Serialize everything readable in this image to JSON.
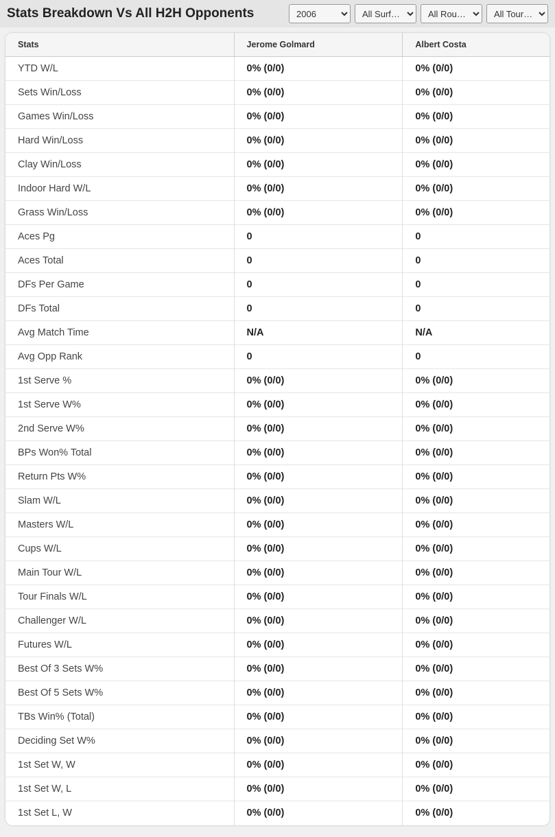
{
  "header": {
    "title": "Stats Breakdown Vs All H2H Opponents",
    "filters": {
      "year": "2006",
      "surface": "All Surf…",
      "round": "All Rou…",
      "tour": "All Tour…"
    }
  },
  "table": {
    "columns": {
      "stats": "Stats",
      "player1": "Jerome Golmard",
      "player2": "Albert Costa"
    },
    "rows": [
      {
        "label": "YTD W/L",
        "p1": "0% (0/0)",
        "p2": "0% (0/0)"
      },
      {
        "label": "Sets Win/Loss",
        "p1": "0% (0/0)",
        "p2": "0% (0/0)"
      },
      {
        "label": "Games Win/Loss",
        "p1": "0% (0/0)",
        "p2": "0% (0/0)"
      },
      {
        "label": "Hard Win/Loss",
        "p1": "0% (0/0)",
        "p2": "0% (0/0)"
      },
      {
        "label": "Clay Win/Loss",
        "p1": "0% (0/0)",
        "p2": "0% (0/0)"
      },
      {
        "label": "Indoor Hard W/L",
        "p1": "0% (0/0)",
        "p2": "0% (0/0)"
      },
      {
        "label": "Grass Win/Loss",
        "p1": "0% (0/0)",
        "p2": "0% (0/0)"
      },
      {
        "label": "Aces Pg",
        "p1": "0",
        "p2": "0"
      },
      {
        "label": "Aces Total",
        "p1": "0",
        "p2": "0"
      },
      {
        "label": "DFs Per Game",
        "p1": "0",
        "p2": "0"
      },
      {
        "label": "DFs Total",
        "p1": "0",
        "p2": "0"
      },
      {
        "label": "Avg Match Time",
        "p1": "N/A",
        "p2": "N/A"
      },
      {
        "label": "Avg Opp Rank",
        "p1": "0",
        "p2": "0"
      },
      {
        "label": "1st Serve %",
        "p1": "0% (0/0)",
        "p2": "0% (0/0)"
      },
      {
        "label": "1st Serve W%",
        "p1": "0% (0/0)",
        "p2": "0% (0/0)"
      },
      {
        "label": "2nd Serve W%",
        "p1": "0% (0/0)",
        "p2": "0% (0/0)"
      },
      {
        "label": "BPs Won% Total",
        "p1": "0% (0/0)",
        "p2": "0% (0/0)"
      },
      {
        "label": "Return Pts W%",
        "p1": "0% (0/0)",
        "p2": "0% (0/0)"
      },
      {
        "label": "Slam W/L",
        "p1": "0% (0/0)",
        "p2": "0% (0/0)"
      },
      {
        "label": "Masters W/L",
        "p1": "0% (0/0)",
        "p2": "0% (0/0)"
      },
      {
        "label": "Cups W/L",
        "p1": "0% (0/0)",
        "p2": "0% (0/0)"
      },
      {
        "label": "Main Tour W/L",
        "p1": "0% (0/0)",
        "p2": "0% (0/0)"
      },
      {
        "label": "Tour Finals W/L",
        "p1": "0% (0/0)",
        "p2": "0% (0/0)"
      },
      {
        "label": "Challenger W/L",
        "p1": "0% (0/0)",
        "p2": "0% (0/0)"
      },
      {
        "label": "Futures W/L",
        "p1": "0% (0/0)",
        "p2": "0% (0/0)"
      },
      {
        "label": "Best Of 3 Sets W%",
        "p1": "0% (0/0)",
        "p2": "0% (0/0)"
      },
      {
        "label": "Best Of 5 Sets W%",
        "p1": "0% (0/0)",
        "p2": "0% (0/0)"
      },
      {
        "label": "TBs Win% (Total)",
        "p1": "0% (0/0)",
        "p2": "0% (0/0)"
      },
      {
        "label": "Deciding Set W%",
        "p1": "0% (0/0)",
        "p2": "0% (0/0)"
      },
      {
        "label": "1st Set W, W",
        "p1": "0% (0/0)",
        "p2": "0% (0/0)"
      },
      {
        "label": "1st Set W, L",
        "p1": "0% (0/0)",
        "p2": "0% (0/0)"
      },
      {
        "label": "1st Set L, W",
        "p1": "0% (0/0)",
        "p2": "0% (0/0)"
      }
    ]
  }
}
